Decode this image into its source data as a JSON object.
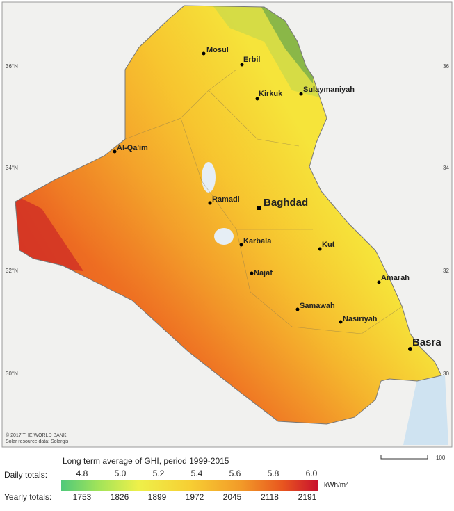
{
  "map": {
    "latitude_labels": [
      "36°N",
      "34°N",
      "32°N",
      "30°N"
    ],
    "right_labels": [
      "36",
      "34",
      "32",
      "30"
    ],
    "cities": [
      "Mosul",
      "Erbil",
      "Kirkuk",
      "Sulaymaniyah",
      "Al-Qa'im",
      "Ramadi",
      "Baghdad",
      "Karbala",
      "Kut",
      "Najaf",
      "Amarah",
      "Samawah",
      "Nasiriyah",
      "Basra"
    ],
    "credits": [
      "© 2017 THE WORLD BANK",
      "Solar resource data: Solargis"
    ],
    "scale_label": "100"
  },
  "legend": {
    "title": "Long term average of GHI, period 1999-2015",
    "daily_label": "Daily totals:",
    "daily": [
      "4.8",
      "5.0",
      "5.2",
      "5.4",
      "5.6",
      "5.8",
      "6.0"
    ],
    "unit": "kWh/m²",
    "yearly_label": "Yearly totals:",
    "yearly": [
      "1753",
      "1826",
      "1899",
      "1972",
      "2045",
      "2118",
      "2191"
    ]
  }
}
